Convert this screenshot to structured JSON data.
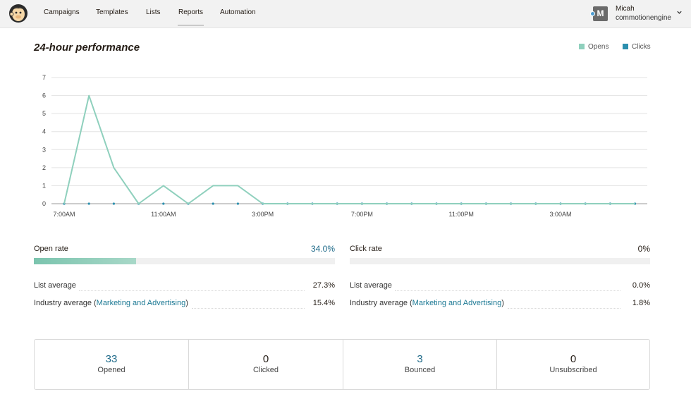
{
  "nav": {
    "items": [
      {
        "label": "Campaigns",
        "active": false
      },
      {
        "label": "Templates",
        "active": false
      },
      {
        "label": "Lists",
        "active": false
      },
      {
        "label": "Reports",
        "active": true
      },
      {
        "label": "Automation",
        "active": false
      }
    ],
    "user": {
      "initial": "M",
      "name": "Micah",
      "account": "commotionengine"
    }
  },
  "performance": {
    "title": "24-hour performance",
    "legend": [
      {
        "label": "Opens",
        "color": "#8fd0bd"
      },
      {
        "label": "Clicks",
        "color": "#2b8fae"
      }
    ]
  },
  "chart_data": {
    "type": "line",
    "title": "24-hour performance",
    "xlabel": "",
    "ylabel": "",
    "ylim": [
      0,
      7
    ],
    "yticks": [
      0,
      1,
      2,
      3,
      4,
      5,
      6,
      7
    ],
    "x_tick_labels": [
      "7:00AM",
      "11:00AM",
      "3:00PM",
      "7:00PM",
      "11:00PM",
      "3:00AM"
    ],
    "x_tick_hours": [
      0,
      4,
      8,
      12,
      16,
      20
    ],
    "x": [
      0,
      1,
      2,
      3,
      4,
      5,
      6,
      7,
      8,
      9,
      10,
      11,
      12,
      13,
      14,
      15,
      16,
      17,
      18,
      19,
      20,
      21,
      22,
      23
    ],
    "grid": true,
    "legend_position": "top-right",
    "series": [
      {
        "name": "Opens",
        "color": "#8fd0bd",
        "values": [
          0,
          6,
          2,
          0,
          1,
          0,
          1,
          1,
          0,
          0,
          0,
          0,
          0,
          0,
          0,
          0,
          0,
          0,
          0,
          0,
          0,
          0,
          0,
          0
        ]
      },
      {
        "name": "Clicks",
        "color": "#2b8fae",
        "values": [
          0,
          0,
          0,
          0,
          0,
          0,
          0,
          0,
          0,
          0,
          0,
          0,
          0,
          0,
          0,
          0,
          0,
          0,
          0,
          0,
          0,
          0,
          0,
          0
        ]
      }
    ]
  },
  "open_rate": {
    "label": "Open rate",
    "value": "34.0%",
    "fill_percent": 34.0,
    "fill_color": "#7bc4ae",
    "list_average_label": "List average",
    "list_average_value": "27.3%",
    "industry_prefix": "Industry average (",
    "industry_link": "Marketing and Advertising",
    "industry_suffix": ")",
    "industry_value": "15.4%"
  },
  "click_rate": {
    "label": "Click rate",
    "value": "0%",
    "fill_percent": 0,
    "list_average_label": "List average",
    "list_average_value": "0.0%",
    "industry_prefix": "Industry average (",
    "industry_link": "Marketing and Advertising",
    "industry_suffix": ")",
    "industry_value": "1.8%"
  },
  "stats": [
    {
      "value": "33",
      "label": "Opened",
      "highlight": true
    },
    {
      "value": "0",
      "label": "Clicked",
      "highlight": false
    },
    {
      "value": "3",
      "label": "Bounced",
      "highlight": true
    },
    {
      "value": "0",
      "label": "Unsubscribed",
      "highlight": false
    }
  ],
  "colors": {
    "link": "#1e7a95",
    "accent_value": "#1e6a89"
  }
}
